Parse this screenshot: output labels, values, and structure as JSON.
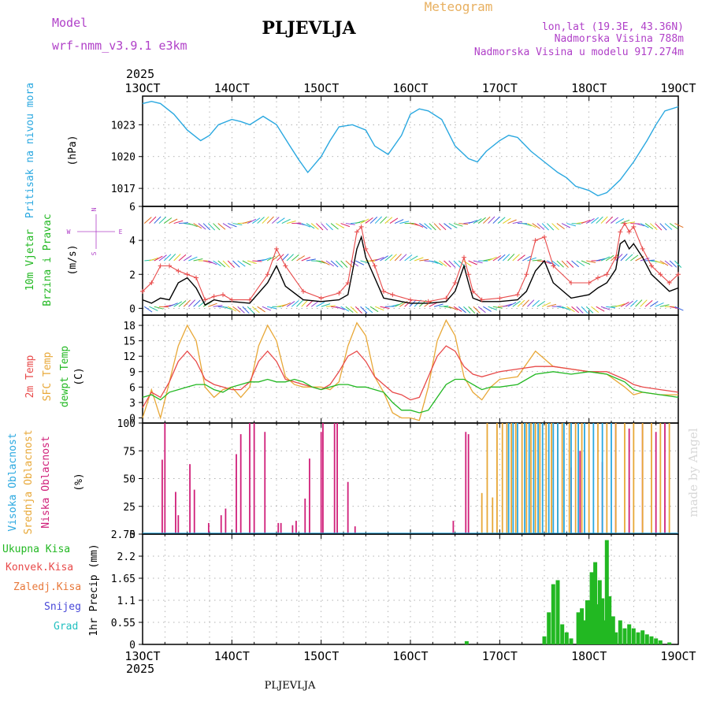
{
  "header": {
    "model_label": "Model",
    "model_name": "wrf-nmm_v3.9.1 e3km",
    "station": "PLJEVLJA",
    "meteogram": "Meteogram",
    "lonlat": "lon,lat (19.3E, 43.36N)",
    "altitude": "Nadmorska Visina 788m",
    "model_altitude": "Nadmorska Visina u modelu 917.274m",
    "year_top": "2025",
    "year_bottom": "2025",
    "footer_station": "PLJEVLJA",
    "credit": "made by Angel"
  },
  "colors": {
    "pressure": "#2aa8e0",
    "temp": "#e84a4a",
    "sfc": "#e8a838",
    "dew": "#22b822",
    "purple": "#b040c8",
    "magenta": "#d0207a",
    "high_cloud": "#2aa8e0",
    "precip": "#22b822"
  },
  "time_axis": {
    "labels": [
      "13OCT",
      "14OCT",
      "15OCT",
      "16OCT",
      "17OCT",
      "18OCT",
      "19OCT"
    ],
    "days": [
      13,
      14,
      15,
      16,
      17,
      18,
      19
    ]
  },
  "chart_data": [
    {
      "type": "line",
      "panel": "pressure",
      "ylabel": "Pritisak na nivou mora",
      "unit": "(hPa)",
      "ylim": [
        1015.3,
        1025.7
      ],
      "yticks": [
        1017,
        1020,
        1023
      ],
      "x_days": [
        13.0,
        13.1,
        13.2,
        13.35,
        13.5,
        13.65,
        13.75,
        13.85,
        14.0,
        14.1,
        14.2,
        14.35,
        14.5,
        14.65,
        14.75,
        14.85,
        15.0,
        15.1,
        15.2,
        15.35,
        15.5,
        15.6,
        15.75,
        15.9,
        16.0,
        16.1,
        16.2,
        16.35,
        16.5,
        16.65,
        16.75,
        16.85,
        17.0,
        17.1,
        17.2,
        17.35,
        17.5,
        17.65,
        17.75,
        17.85,
        18.0,
        18.1,
        18.2,
        18.35,
        18.5,
        18.65,
        18.75,
        18.85,
        19.0
      ],
      "series": [
        {
          "name": "Pritisak na nivou mora",
          "values": [
            1025.0,
            1025.2,
            1025.0,
            1024.0,
            1022.5,
            1021.5,
            1022.0,
            1023.0,
            1023.5,
            1023.3,
            1023.0,
            1023.8,
            1023.0,
            1021.0,
            1019.7,
            1018.5,
            1020.0,
            1021.5,
            1022.8,
            1023.0,
            1022.5,
            1021.0,
            1020.2,
            1022.0,
            1024.0,
            1024.5,
            1024.3,
            1023.5,
            1021.0,
            1019.8,
            1019.5,
            1020.5,
            1021.5,
            1022.0,
            1021.8,
            1020.5,
            1019.5,
            1018.5,
            1018.0,
            1017.2,
            1016.8,
            1016.3,
            1016.6,
            1017.8,
            1019.5,
            1021.5,
            1023.0,
            1024.3,
            1024.7
          ]
        }
      ]
    },
    {
      "type": "line",
      "panel": "wind",
      "ylabel": "10m Vjetar",
      "ylabel2": "Brzina i Pravac",
      "unit": "(m/s)",
      "compass": [
        "N",
        "W",
        "E",
        "S"
      ],
      "ylim": [
        -0.4,
        6
      ],
      "yticks": [
        0,
        2,
        4,
        6
      ],
      "x_days": [
        13.0,
        13.1,
        13.2,
        13.3,
        13.4,
        13.5,
        13.6,
        13.7,
        13.8,
        13.9,
        14.0,
        14.2,
        14.4,
        14.5,
        14.6,
        14.8,
        15.0,
        15.2,
        15.3,
        15.4,
        15.45,
        15.5,
        15.6,
        15.7,
        15.8,
        16.0,
        16.2,
        16.4,
        16.5,
        16.6,
        16.65,
        16.7,
        16.8,
        17.0,
        17.2,
        17.3,
        17.4,
        17.5,
        17.6,
        17.8,
        18.0,
        18.1,
        18.2,
        18.3,
        18.35,
        18.4,
        18.45,
        18.5,
        18.6,
        18.7,
        18.8,
        18.9,
        19.0
      ],
      "series": [
        {
          "name": "Brzina",
          "values": [
            0.5,
            0.3,
            0.6,
            0.5,
            1.5,
            1.8,
            1.2,
            0.2,
            0.5,
            0.4,
            0.4,
            0.3,
            1.5,
            2.5,
            1.3,
            0.5,
            0.4,
            0.5,
            0.8,
            3.5,
            4.2,
            3.0,
            1.8,
            0.6,
            0.5,
            0.3,
            0.3,
            0.4,
            1.0,
            2.5,
            1.5,
            0.6,
            0.4,
            0.4,
            0.5,
            1.0,
            2.2,
            2.8,
            1.5,
            0.6,
            0.8,
            1.2,
            1.5,
            2.3,
            3.8,
            4.0,
            3.5,
            3.8,
            3.0,
            2.0,
            1.5,
            1.0,
            1.2
          ]
        },
        {
          "name": "Udari",
          "values": [
            1.0,
            1.5,
            2.5,
            2.5,
            2.2,
            2.0,
            1.8,
            0.5,
            0.7,
            0.8,
            0.5,
            0.5,
            2.0,
            3.5,
            2.5,
            1.0,
            0.6,
            0.9,
            1.5,
            4.5,
            4.8,
            3.5,
            2.5,
            1.0,
            0.8,
            0.5,
            0.4,
            0.6,
            1.5,
            3.0,
            2.0,
            1.0,
            0.5,
            0.6,
            0.8,
            2.0,
            4.0,
            4.2,
            2.5,
            1.5,
            1.5,
            1.8,
            2.0,
            3.0,
            4.5,
            5.0,
            4.5,
            4.8,
            3.5,
            2.5,
            2.0,
            1.5,
            2.0
          ]
        }
      ]
    },
    {
      "type": "line",
      "panel": "temperature",
      "ylabels": [
        "2m Temp",
        "SFC Temp",
        "dewpt Temp"
      ],
      "unit": "(C)",
      "ylim": [
        -1.0,
        20.0
      ],
      "yticks": [
        0,
        3,
        6,
        9,
        12,
        15,
        18
      ],
      "x_days": [
        13.0,
        13.1,
        13.2,
        13.3,
        13.4,
        13.5,
        13.6,
        13.7,
        13.8,
        13.9,
        14.0,
        14.1,
        14.2,
        14.3,
        14.4,
        14.5,
        14.6,
        14.7,
        14.8,
        14.9,
        15.0,
        15.1,
        15.2,
        15.3,
        15.4,
        15.5,
        15.6,
        15.7,
        15.8,
        15.9,
        16.0,
        16.1,
        16.2,
        16.3,
        16.4,
        16.5,
        16.6,
        16.7,
        16.8,
        16.9,
        17.0,
        17.2,
        17.4,
        17.6,
        17.8,
        18.0,
        18.2,
        18.4,
        18.5,
        18.6,
        18.8,
        19.0
      ],
      "series": [
        {
          "name": "2m Temp",
          "values": [
            2.0,
            5.0,
            4.0,
            7.0,
            11.0,
            13.0,
            11.0,
            7.5,
            6.5,
            6.0,
            5.5,
            5.5,
            7.0,
            11.0,
            13.0,
            11.0,
            7.5,
            7.0,
            6.5,
            6.0,
            5.5,
            6.5,
            9.0,
            12.0,
            13.0,
            11.0,
            8.0,
            6.5,
            5.0,
            4.5,
            3.5,
            4.0,
            8.0,
            12.0,
            14.0,
            13.0,
            10.0,
            8.5,
            8.0,
            8.5,
            9.0,
            9.5,
            10.0,
            10.0,
            9.5,
            9.0,
            9.0,
            7.5,
            6.5,
            6.0,
            5.5,
            5.0
          ]
        },
        {
          "name": "SFC Temp",
          "values": [
            0.0,
            5.5,
            0.0,
            7.0,
            14.0,
            18.0,
            15.0,
            6.0,
            4.0,
            5.5,
            6.0,
            4.0,
            6.0,
            14.0,
            18.0,
            15.0,
            8.0,
            6.5,
            6.0,
            6.0,
            6.0,
            5.5,
            7.0,
            14.0,
            18.5,
            16.0,
            8.0,
            5.0,
            1.0,
            0.0,
            0.0,
            -0.5,
            6.0,
            15.0,
            19.0,
            16.0,
            8.0,
            5.0,
            3.5,
            6.0,
            7.5,
            8.0,
            13.0,
            10.0,
            9.5,
            9.0,
            8.5,
            6.0,
            4.5,
            5.0,
            4.5,
            4.5
          ]
        },
        {
          "name": "dewpt Temp",
          "values": [
            4.0,
            4.5,
            3.5,
            5.0,
            5.5,
            6.0,
            6.5,
            6.5,
            5.5,
            5.0,
            6.0,
            6.5,
            7.0,
            7.0,
            7.5,
            7.0,
            7.0,
            7.5,
            7.0,
            6.0,
            5.5,
            6.0,
            6.5,
            6.5,
            6.0,
            6.0,
            5.5,
            5.0,
            3.0,
            1.5,
            1.5,
            1.0,
            1.5,
            4.0,
            6.5,
            7.5,
            7.5,
            6.5,
            5.5,
            6.0,
            6.0,
            6.5,
            8.5,
            9.0,
            8.5,
            9.0,
            8.5,
            7.0,
            5.5,
            5.0,
            4.5,
            4.0
          ]
        }
      ]
    },
    {
      "type": "bar",
      "panel": "cloud",
      "ylabels": [
        "Visoka Oblacnost",
        "Srednja Oblacnost",
        "Niska Oblacnost"
      ],
      "unit": "(%)",
      "ylim": [
        0,
        100
      ],
      "yticks": [
        0,
        25,
        50,
        75,
        100
      ],
      "series": [
        {
          "name": "Niska Oblacnost",
          "x_days": [
            13.22,
            13.25,
            13.37,
            13.4,
            13.53,
            13.58,
            13.74,
            13.88,
            13.93,
            14.05,
            14.1,
            14.2,
            14.25,
            14.37,
            14.52,
            14.55,
            14.68,
            14.72,
            14.82,
            14.87,
            15.0,
            15.02,
            15.15,
            15.18,
            15.3,
            15.38,
            16.48,
            16.62,
            16.65,
            17.8,
            17.9,
            18.15,
            18.3,
            18.45,
            18.6,
            18.75,
            18.85
          ],
          "values": [
            67,
            100,
            38,
            17,
            63,
            40,
            10,
            17,
            23,
            72,
            90,
            100,
            100,
            92,
            10,
            10,
            8,
            12,
            32,
            68,
            92,
            100,
            100,
            100,
            47,
            7,
            12,
            92,
            90,
            60,
            75,
            65,
            100,
            95,
            100,
            92,
            100
          ]
        },
        {
          "name": "Srednja Oblacnost",
          "x_days": [
            16.8,
            16.86,
            16.92,
            16.97,
            17.03,
            17.08,
            17.13,
            17.18,
            17.25,
            17.3,
            17.35,
            17.4,
            17.45,
            17.52,
            17.58,
            17.65,
            17.7,
            17.78,
            17.85,
            17.92,
            18.0,
            18.1,
            18.2,
            18.3,
            18.4,
            18.5,
            18.6,
            18.7,
            18.8,
            18.9
          ],
          "values": [
            37,
            100,
            33,
            100,
            100,
            100,
            100,
            100,
            100,
            100,
            100,
            100,
            100,
            100,
            100,
            100,
            100,
            100,
            100,
            100,
            100,
            100,
            100,
            100,
            100,
            100,
            100,
            100,
            100,
            100
          ]
        },
        {
          "name": "Visoka Oblacnost",
          "x_days": [
            17.1,
            17.15,
            17.2,
            17.28,
            17.33,
            17.38,
            17.43,
            17.48,
            17.55,
            17.6,
            17.65,
            17.72,
            17.8,
            17.88,
            17.95,
            18.05,
            18.15,
            18.25
          ],
          "values": [
            100,
            100,
            100,
            100,
            100,
            100,
            100,
            100,
            100,
            100,
            100,
            100,
            100,
            100,
            100,
            100,
            100,
            100
          ]
        }
      ]
    },
    {
      "type": "bar",
      "panel": "precipitation",
      "ylabels": [
        "Ukupna Kisa",
        "Konvek.Kisa",
        "Zaledj.Kisa",
        "Snijeg",
        "Grad"
      ],
      "ylabel": "1hr Precip (mm)",
      "ylim": [
        0,
        2.75
      ],
      "yticks": [
        0,
        0.55,
        1.1,
        1.65,
        2.2,
        2.75
      ],
      "series": [
        {
          "name": "Ukupna Kisa",
          "x_days": [
            16.63,
            17.5,
            17.55,
            17.6,
            17.65,
            17.7,
            17.75,
            17.8,
            17.88,
            17.92,
            17.95,
            17.98,
            18.0,
            18.03,
            18.07,
            18.1,
            18.12,
            18.15,
            18.18,
            18.2,
            18.23,
            18.27,
            18.3,
            18.35,
            18.4,
            18.45,
            18.5,
            18.55,
            18.6,
            18.65,
            18.7,
            18.75,
            18.8,
            18.9
          ],
          "values": [
            0.08,
            0.2,
            0.8,
            1.5,
            1.6,
            0.5,
            0.3,
            0.15,
            0.8,
            0.9,
            0.6,
            1.1,
            1.1,
            1.8,
            2.05,
            1.0,
            1.6,
            1.15,
            0.6,
            2.6,
            1.2,
            0.7,
            0.3,
            0.6,
            0.4,
            0.5,
            0.4,
            0.3,
            0.35,
            0.25,
            0.2,
            0.15,
            0.1,
            0.05
          ]
        }
      ]
    }
  ]
}
